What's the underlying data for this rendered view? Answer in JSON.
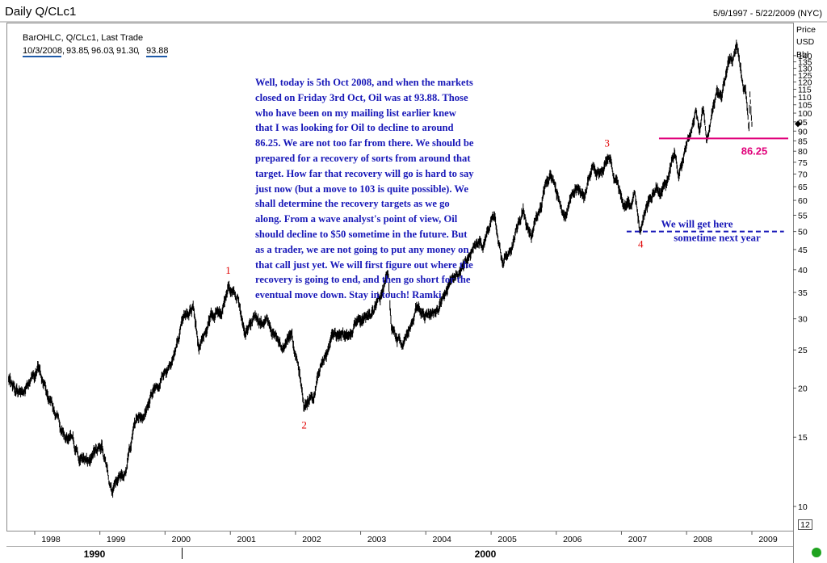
{
  "header": {
    "title": "Daily Q/CLc1",
    "date_range": "5/9/1997 - 5/22/2009 (NYC)"
  },
  "info": {
    "line1": "BarOHLC, Q/CLc1, Last Trade",
    "date": "10/3/2008",
    "open": "93.85",
    "high": "96.03",
    "low": "91.30",
    "close": "93.88"
  },
  "commentary": "Well, today is 5th Oct 2008, and when the markets\nclosed on Friday 3rd Oct, Oil was at 93.88. Those\nwho have been on my mailing list earlier knew\nthat I was looking for Oil to decline to around\n86.25. We are not too far from there. We should be\nprepared for a recovery of sorts from around that\ntarget. How far that recovery will go is hard to say\njust now (but a move to 103 is quite possible). We\nshall determine the recovery targets as we go\nalong. From a wave analyst's point of view, Oil\nshould decline to $50 sometime in the future. But\nas a trader, we are not going to put any money on\nthat call just yet. We will first figure out where the\nrecovery is going to end, and then go short for the\neventual move down. Stay in touch! Ramki",
  "axis_header": [
    "Price",
    "USD",
    "Bbl"
  ],
  "log_scale_note": "12",
  "colors": {
    "price": "#000000",
    "target_line": "#e0007a",
    "projection_line": "#1818b8",
    "wave_labels": "#e00000",
    "commentary": "#1818b8"
  },
  "chart_data": {
    "type": "line",
    "style": "OHLC bars (daily)",
    "series": [
      {
        "name": "Q/CLc1",
        "points": [
          [
            "1997-05-09",
            21.0
          ],
          [
            "1997-06-15",
            19.8
          ],
          [
            "1997-08-01",
            19.6
          ],
          [
            "1997-10-01",
            21.5
          ],
          [
            "1997-10-20",
            22.5
          ],
          [
            "1997-12-15",
            19.0
          ],
          [
            "1998-03-15",
            15.5
          ],
          [
            "1998-06-15",
            13.0
          ],
          [
            "1998-08-15",
            13.0
          ],
          [
            "1998-10-15",
            14.5
          ],
          [
            "1998-12-10",
            11.0
          ],
          [
            "1999-02-15",
            11.8
          ],
          [
            "1999-04-15",
            16.5
          ],
          [
            "1999-06-15",
            18.0
          ],
          [
            "1999-08-15",
            21.0
          ],
          [
            "1999-10-15",
            22.5
          ],
          [
            "1999-12-15",
            26.0
          ],
          [
            "2000-03-07",
            33.5
          ],
          [
            "2000-04-10",
            25.0
          ],
          [
            "2000-06-15",
            32.0
          ],
          [
            "2000-08-15",
            31.0
          ],
          [
            "2000-09-20",
            37.2
          ],
          [
            "2000-11-15",
            35.0
          ],
          [
            "2000-12-20",
            26.5
          ],
          [
            "2001-02-15",
            30.0
          ],
          [
            "2001-05-15",
            29.0
          ],
          [
            "2001-07-15",
            26.0
          ],
          [
            "2001-09-10",
            28.5
          ],
          [
            "2001-10-15",
            22.5
          ],
          [
            "2001-11-20",
            17.5
          ],
          [
            "2002-01-15",
            19.5
          ],
          [
            "2002-03-15",
            24.0
          ],
          [
            "2002-05-15",
            27.0
          ],
          [
            "2002-07-15",
            27.5
          ],
          [
            "2002-09-20",
            30.5
          ],
          [
            "2002-12-15",
            31.0
          ],
          [
            "2003-03-07",
            38.0
          ],
          [
            "2003-03-25",
            27.5
          ],
          [
            "2003-05-15",
            26.0
          ],
          [
            "2003-08-15",
            31.0
          ],
          [
            "2003-10-15",
            29.5
          ],
          [
            "2003-12-15",
            32.5
          ],
          [
            "2004-03-15",
            37.0
          ],
          [
            "2004-06-01",
            42.0
          ],
          [
            "2004-08-15",
            47.0
          ],
          [
            "2004-10-25",
            55.0
          ],
          [
            "2004-12-10",
            41.0
          ],
          [
            "2005-02-15",
            48.0
          ],
          [
            "2005-04-01",
            57.0
          ],
          [
            "2005-05-15",
            47.0
          ],
          [
            "2005-07-15",
            60.0
          ],
          [
            "2005-08-30",
            69.5
          ],
          [
            "2005-10-15",
            62.0
          ],
          [
            "2005-11-25",
            56.0
          ],
          [
            "2006-01-20",
            68.0
          ],
          [
            "2006-03-10",
            60.0
          ],
          [
            "2006-04-21",
            75.0
          ],
          [
            "2006-06-15",
            70.0
          ],
          [
            "2006-07-14",
            78.4
          ],
          [
            "2006-08-15",
            72.0
          ],
          [
            "2006-09-25",
            60.0
          ],
          [
            "2006-11-15",
            58.0
          ],
          [
            "2006-12-15",
            63.0
          ],
          [
            "2007-01-18",
            50.5
          ],
          [
            "2007-02-15",
            58.0
          ],
          [
            "2007-04-15",
            64.0
          ],
          [
            "2007-05-15",
            62.0
          ],
          [
            "2007-06-15",
            68.0
          ],
          [
            "2007-07-30",
            78.0
          ],
          [
            "2007-08-20",
            70.0
          ],
          [
            "2007-10-15",
            85.0
          ],
          [
            "2007-11-21",
            99.0
          ],
          [
            "2007-12-15",
            89.0
          ],
          [
            "2008-01-02",
            100.0
          ],
          [
            "2008-01-22",
            87.0
          ],
          [
            "2008-03-15",
            110.0
          ],
          [
            "2008-04-15",
            115.0
          ],
          [
            "2008-05-22",
            133.0
          ],
          [
            "2008-06-15",
            133.0
          ],
          [
            "2008-07-11",
            147.3
          ],
          [
            "2008-08-15",
            113.0
          ],
          [
            "2008-08-29",
            115.0
          ],
          [
            "2008-09-16",
            91.0
          ],
          [
            "2008-09-22",
            110.0
          ],
          [
            "2008-10-03",
            93.88
          ]
        ]
      }
    ],
    "x_axis": {
      "range": [
        "1997-05-09",
        "2009-05-22"
      ],
      "tick_labels": [
        "1998",
        "1999",
        "2000",
        "2001",
        "2002",
        "2003",
        "2004",
        "2005",
        "2006",
        "2007",
        "2008",
        "2009"
      ],
      "decade_labels": [
        "1990",
        "2000"
      ]
    },
    "y_axis": {
      "scale": "log",
      "range": [
        10,
        152
      ],
      "tick_labels": [
        "10",
        "15",
        "20",
        "25",
        "30",
        "35",
        "40",
        "45",
        "50",
        "55",
        "60",
        "65",
        "70",
        "75",
        "80",
        "85",
        "90",
        "95",
        "100",
        "105",
        "110",
        "115",
        "120",
        "125",
        "130",
        "135",
        "140"
      ],
      "position": "right"
    },
    "grid": false,
    "annotations": {
      "wave_labels": [
        {
          "label": "1",
          "date": "2000-09-20",
          "value": 37.2,
          "position": "above"
        },
        {
          "label": "2",
          "date": "2001-11-20",
          "value": 17.5,
          "position": "below"
        },
        {
          "label": "3",
          "date": "2006-07-14",
          "value": 78.4,
          "position": "above"
        },
        {
          "label": "4",
          "date": "2007-01-18",
          "value": 50.5,
          "position": "below"
        }
      ],
      "target": {
        "value": 86.25,
        "label": "86.25",
        "from": "2007-05-01",
        "to": "2009-05-22"
      },
      "projection": {
        "value": 50,
        "from": "2006-11-01",
        "to": "2009-03-31",
        "text_line1": "We will get here",
        "text_line2": "sometime next year"
      },
      "current_price_marker": 93.88
    }
  }
}
